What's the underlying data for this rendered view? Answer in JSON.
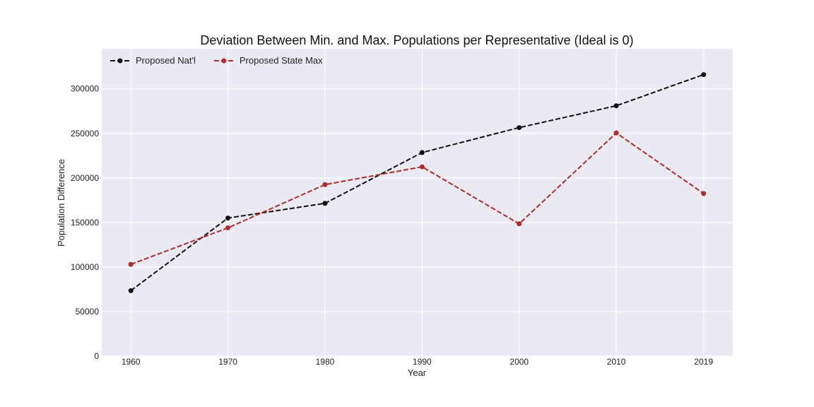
{
  "chart_data": {
    "type": "line",
    "title": "Deviation Between Min. and Max. Populations per Representative (Ideal is 0)",
    "xlabel": "Year",
    "ylabel": "Population Difference",
    "x": [
      "1960",
      "1970",
      "1980",
      "1990",
      "2000",
      "2010",
      "2019"
    ],
    "x_values": [
      1960,
      1970,
      1980,
      1990,
      2000,
      2010,
      2019
    ],
    "y_ticks": [
      0,
      50000,
      100000,
      150000,
      200000,
      250000,
      300000
    ],
    "y_tick_labels": [
      "0",
      "50000",
      "100000",
      "150000",
      "200000",
      "250000",
      "300000"
    ],
    "ylim": [
      0,
      345000
    ],
    "xlim": [
      1957,
      2022
    ],
    "grid": true,
    "legend_position": "top-left",
    "background_color": "#eaeaf2",
    "series": [
      {
        "name": "Proposed Nat'l",
        "color": "#111111",
        "linestyle": "dashed",
        "marker": "circle",
        "values": [
          73500,
          155000,
          171500,
          228500,
          256500,
          281000,
          316000
        ]
      },
      {
        "name": "Proposed State Max",
        "color": "#b22a2a",
        "linestyle": "dashed",
        "marker": "circle",
        "values": [
          103000,
          144000,
          192500,
          212500,
          148500,
          250500,
          182500
        ]
      }
    ]
  }
}
